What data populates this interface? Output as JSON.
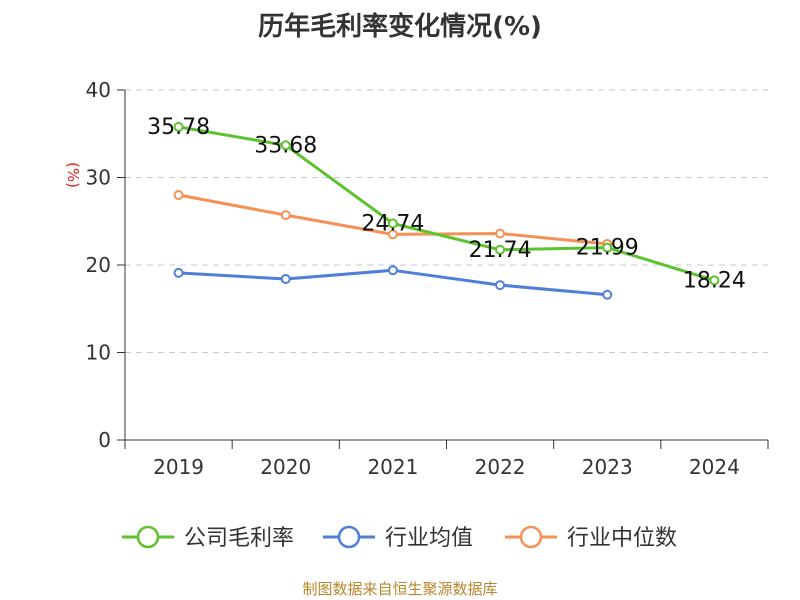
{
  "title": "历年毛利率变化情况(%)",
  "source_note": "制图数据来自恒生聚源数据库",
  "chart_data": {
    "type": "line",
    "title": "历年毛利率变化情况(%)",
    "ylabel": "(%)",
    "xlabel": "",
    "x": [
      "2019",
      "2020",
      "2021",
      "2022",
      "2023",
      "2024"
    ],
    "ylim": [
      0,
      40
    ],
    "yticks": [
      0,
      10,
      20,
      30,
      40
    ],
    "grid": true,
    "legend_position": "bottom",
    "series": [
      {
        "name": "公司毛利率",
        "color": "#5cc22e",
        "values": [
          35.78,
          33.68,
          24.74,
          21.74,
          21.99,
          18.24
        ],
        "labels": [
          "35.78",
          "33.68",
          "24.74",
          "21.74",
          "21.99",
          "18.24"
        ]
      },
      {
        "name": "行业均值",
        "color": "#4f7fd9",
        "values": [
          19.1,
          18.4,
          19.4,
          17.7,
          16.6,
          null
        ]
      },
      {
        "name": "行业中位数",
        "color": "#f59157",
        "values": [
          28.0,
          25.7,
          23.5,
          23.6,
          22.4,
          null
        ]
      }
    ]
  }
}
